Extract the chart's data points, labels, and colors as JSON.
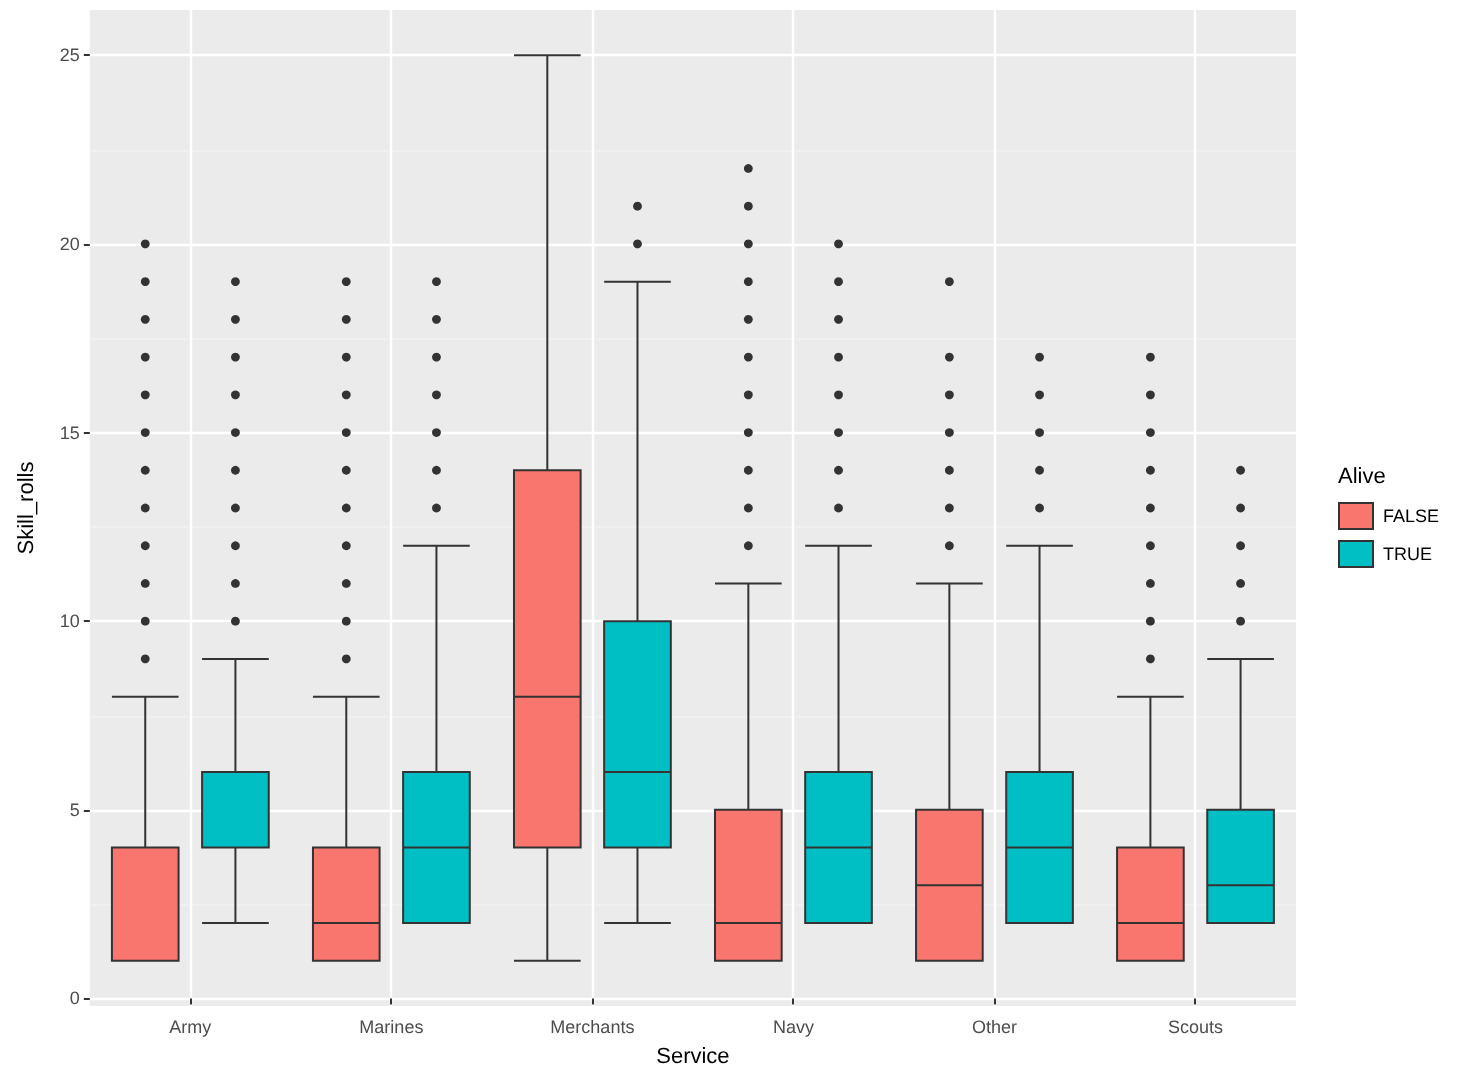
{
  "chart_data": {
    "type": "box",
    "xlabel": "Service",
    "ylabel": "Skill_rolls",
    "legend_title": "Alive",
    "categories": [
      "Army",
      "Marines",
      "Merchants",
      "Navy",
      "Other",
      "Scouts"
    ],
    "series": [
      {
        "name": "FALSE",
        "color": "#f8766d",
        "boxes": [
          {
            "low": 1,
            "q1": 1,
            "median": 1,
            "q3": 4,
            "high": 8,
            "outliers": [
              9,
              10,
              11,
              12,
              13,
              14,
              15,
              16,
              17,
              18,
              19,
              20
            ]
          },
          {
            "low": 1,
            "q1": 1,
            "median": 2,
            "q3": 4,
            "high": 8,
            "outliers": [
              9,
              10,
              11,
              12,
              13,
              14,
              15,
              16,
              17,
              18,
              19
            ]
          },
          {
            "low": 1,
            "q1": 4,
            "median": 8,
            "q3": 14,
            "high": 25
          },
          {
            "low": 1,
            "q1": 1,
            "median": 2,
            "q3": 5,
            "high": 11,
            "outliers": [
              12,
              13,
              14,
              15,
              16,
              17,
              18,
              19,
              20,
              21,
              22
            ]
          },
          {
            "low": 1,
            "q1": 1,
            "median": 3,
            "q3": 5,
            "high": 11,
            "outliers": [
              12,
              13,
              14,
              15,
              16,
              17,
              19
            ]
          },
          {
            "low": 1,
            "q1": 1,
            "median": 2,
            "q3": 4,
            "high": 8,
            "outliers": [
              9,
              10,
              11,
              12,
              13,
              14,
              15,
              16,
              17
            ]
          }
        ]
      },
      {
        "name": "TRUE",
        "color": "#00bfc4",
        "boxes": [
          {
            "low": 2,
            "q1": 4,
            "median": 4,
            "q3": 6,
            "high": 9,
            "outliers": [
              10,
              11,
              12,
              13,
              14,
              15,
              16,
              17,
              18,
              19
            ]
          },
          {
            "low": 2,
            "q1": 2,
            "median": 4,
            "q3": 6,
            "high": 12,
            "outliers": [
              13,
              14,
              15,
              16,
              17,
              18,
              19
            ]
          },
          {
            "low": 2,
            "q1": 4,
            "median": 6,
            "q3": 10,
            "high": 19,
            "outliers": [
              20,
              21
            ]
          },
          {
            "low": 2,
            "q1": 2,
            "median": 4,
            "q3": 6,
            "high": 12,
            "outliers": [
              13,
              14,
              15,
              16,
              17,
              18,
              19,
              20
            ]
          },
          {
            "low": 2,
            "q1": 2,
            "median": 4,
            "q3": 6,
            "high": 12,
            "outliers": [
              13,
              14,
              15,
              16,
              17
            ]
          },
          {
            "low": 2,
            "q1": 2,
            "median": 3,
            "q3": 5,
            "high": 9,
            "outliers": [
              10,
              11,
              12,
              13,
              14
            ]
          }
        ]
      }
    ],
    "ylim": [
      -0.2,
      26.2
    ],
    "yticks": [
      0,
      5,
      10,
      15,
      20,
      25
    ],
    "grid": true,
    "legend": "right"
  }
}
